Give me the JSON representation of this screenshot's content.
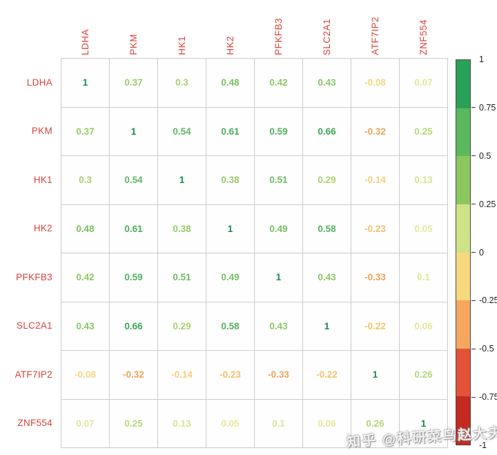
{
  "chart_data": {
    "type": "heatmap",
    "subtype": "correlation-matrix",
    "title": "",
    "categories": [
      "LDHA",
      "PKM",
      "HK1",
      "HK2",
      "PFKFB3",
      "SLC2A1",
      "ATF7IP2",
      "ZNF554"
    ],
    "matrix": [
      [
        1,
        0.37,
        0.3,
        0.48,
        0.42,
        0.43,
        -0.08,
        0.07
      ],
      [
        0.37,
        1,
        0.54,
        0.61,
        0.59,
        0.66,
        -0.32,
        0.25
      ],
      [
        0.3,
        0.54,
        1,
        0.38,
        0.51,
        0.29,
        -0.14,
        0.13
      ],
      [
        0.48,
        0.61,
        0.38,
        1,
        0.49,
        0.58,
        -0.23,
        0.05
      ],
      [
        0.42,
        0.59,
        0.51,
        0.49,
        1,
        0.43,
        -0.33,
        0.1
      ],
      [
        0.43,
        0.66,
        0.29,
        0.58,
        0.43,
        1,
        -0.22,
        0.06
      ],
      [
        -0.08,
        -0.32,
        -0.14,
        -0.23,
        -0.33,
        -0.22,
        1,
        0.26
      ],
      [
        0.07,
        0.25,
        0.13,
        0.05,
        0.1,
        0.06,
        0.26,
        1
      ]
    ],
    "value_range": [
      -1,
      1
    ],
    "grid": true,
    "legend_position": "right"
  },
  "labels": {
    "label_color": "#d7423c"
  },
  "value_color_stops": [
    {
      "v": -0.5,
      "c": "#ee8a47"
    },
    {
      "v": -0.33,
      "c": "#f0a05a"
    },
    {
      "v": -0.2,
      "c": "#f3c96f"
    },
    {
      "v": -0.08,
      "c": "#f3d77f"
    },
    {
      "v": 0,
      "c": "#efe9a0"
    },
    {
      "v": 0.07,
      "c": "#e3e897"
    },
    {
      "v": 0.15,
      "c": "#d5e38c"
    },
    {
      "v": 0.25,
      "c": "#b8d877"
    },
    {
      "v": 0.3,
      "c": "#a8d06c"
    },
    {
      "v": 0.38,
      "c": "#98cb66"
    },
    {
      "v": 0.45,
      "c": "#84c463"
    },
    {
      "v": 0.52,
      "c": "#68bb62"
    },
    {
      "v": 0.58,
      "c": "#54b25f"
    },
    {
      "v": 0.66,
      "c": "#38a75a"
    },
    {
      "v": 0.75,
      "c": "#27a156"
    },
    {
      "v": 1,
      "c": "#108a4e"
    }
  ],
  "colorbar": {
    "ticks": [
      "1",
      "0.75",
      "0.5",
      "0.25",
      "0",
      "-0.25",
      "-0.5",
      "-0.75",
      "-1"
    ],
    "segment_colors": [
      "#29a257",
      "#5cb85e",
      "#8bc75e",
      "#cfe288",
      "#f6d97d",
      "#f5a761",
      "#e2533a",
      "#c32a20"
    ]
  },
  "watermark": {
    "text": "知乎 @科研菜鸟赵大夫"
  }
}
